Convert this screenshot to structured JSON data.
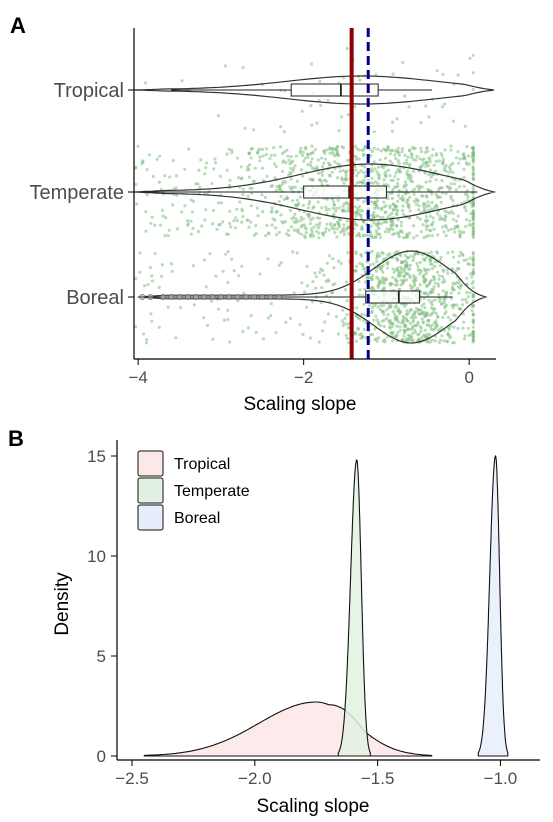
{
  "chart_data": [
    {
      "panel": "A",
      "type": "violin",
      "categories": [
        "Tropical",
        "Temperate",
        "Boreal"
      ],
      "xlabel": "Scaling slope",
      "xlim": [
        -4.05,
        0.3
      ],
      "xticks": [
        -4,
        -2,
        0
      ],
      "xtick_labels": [
        "−4",
        "−2",
        "0"
      ],
      "reference_lines": [
        {
          "x": -1.42,
          "color": "#8b0000",
          "style": "solid"
        },
        {
          "x": -1.22,
          "color": "#00008b",
          "style": "dashed"
        }
      ],
      "point_color": "#7fbf7f",
      "series": [
        {
          "category": "Tropical",
          "box": {
            "min": -3.6,
            "q1": -2.15,
            "median": -1.55,
            "q3": -1.1,
            "max": -0.45
          },
          "violin_range": [
            -4.05,
            0.3
          ],
          "density_center": -1.3,
          "density_width": 0.9,
          "point_count": 60
        },
        {
          "category": "Temperate",
          "box": {
            "min": -4.0,
            "q1": -2.0,
            "median": -1.45,
            "q3": -1.0,
            "max": 0.1
          },
          "violin_range": [
            -4.05,
            0.3
          ],
          "density_center": -1.2,
          "density_width": 0.85,
          "point_count": 1200
        },
        {
          "category": "Boreal",
          "box": {
            "min": -4.0,
            "q1": -1.25,
            "median": -0.85,
            "q3": -0.6,
            "max": -0.2
          },
          "violin_range": [
            -4.0,
            0.2
          ],
          "density_center": -0.7,
          "density_width": 0.45,
          "point_count": 900
        }
      ]
    },
    {
      "panel": "B",
      "type": "area",
      "xlabel": "Scaling slope",
      "ylabel": "Density",
      "xlim": [
        -2.5,
        -0.9
      ],
      "ylim": [
        0,
        15.8
      ],
      "xticks": [
        -2.5,
        -2.0,
        -1.5,
        -1.0
      ],
      "xtick_labels": [
        "−2.5",
        "−2.0",
        "−1.5",
        "−1.0"
      ],
      "yticks": [
        0,
        5,
        10,
        15
      ],
      "ytick_labels": [
        "0",
        "5",
        "10",
        "15"
      ],
      "legend_position": "top-left",
      "series": [
        {
          "name": "Tropical",
          "fill": "#fce8e6",
          "peak_x": -1.75,
          "peak_y": 2.7,
          "range": [
            -2.45,
            -1.28
          ]
        },
        {
          "name": "Temperate",
          "fill": "#e2f2e2",
          "peak_x": -1.585,
          "peak_y": 14.8,
          "range": [
            -1.66,
            -1.53
          ]
        },
        {
          "name": "Boreal",
          "fill": "#e6eefc",
          "peak_x": -1.02,
          "peak_y": 15.0,
          "range": [
            -1.09,
            -0.97
          ]
        }
      ]
    }
  ]
}
